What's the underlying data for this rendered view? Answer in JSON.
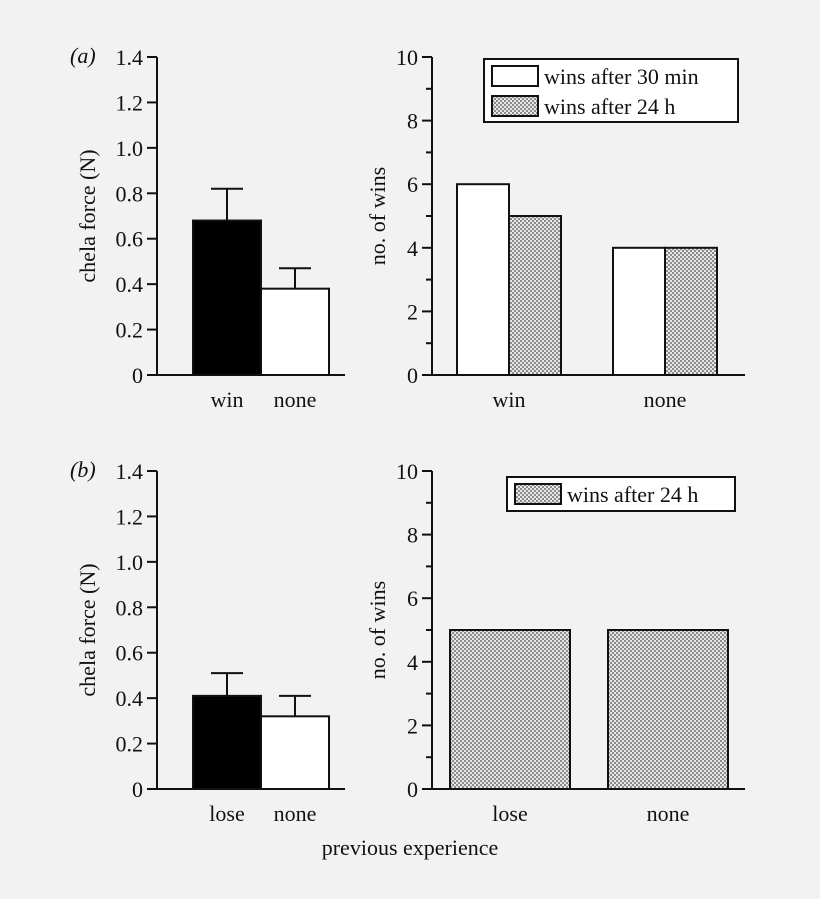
{
  "colors": {
    "background": "#f2f2f2",
    "black_bar": "#000000",
    "white_bar": "#ffffff",
    "checker_dark": "#8c8c8c",
    "checker_light": "#e6e6e6"
  },
  "x_label": "previous experience",
  "chart_data": [
    {
      "id": "a-force",
      "type": "bar",
      "panel_label": "(a)",
      "categories": [
        "win",
        "none"
      ],
      "values": [
        0.68,
        0.38
      ],
      "errors": [
        0.14,
        0.09
      ],
      "fills": [
        "black",
        "white"
      ],
      "ylabel": "chela force (N)",
      "ylim": [
        0,
        1.4
      ],
      "yticks": [
        "0",
        "0.2",
        "0.4",
        "0.6",
        "0.8",
        "1.0",
        "1.2",
        "1.4"
      ],
      "yminor": false
    },
    {
      "id": "a-wins",
      "type": "bar",
      "categories": [
        "win",
        "none"
      ],
      "series": [
        {
          "name": "wins after 30 min",
          "fill": "white",
          "values": [
            6,
            4
          ]
        },
        {
          "name": "wins after 24 h",
          "fill": "checker",
          "values": [
            5,
            4
          ]
        }
      ],
      "ylabel": "no. of wins",
      "ylim": [
        0,
        10
      ],
      "yticks": [
        "0",
        "2",
        "4",
        "6",
        "8",
        "10"
      ],
      "yminor": true,
      "legend": "top-right"
    },
    {
      "id": "b-force",
      "type": "bar",
      "panel_label": "(b)",
      "categories": [
        "lose",
        "none"
      ],
      "values": [
        0.41,
        0.32
      ],
      "errors": [
        0.1,
        0.09
      ],
      "fills": [
        "black",
        "white"
      ],
      "ylabel": "chela force (N)",
      "ylim": [
        0,
        1.4
      ],
      "yticks": [
        "0",
        "0.2",
        "0.4",
        "0.6",
        "0.8",
        "1.0",
        "1.2",
        "1.4"
      ],
      "yminor": false
    },
    {
      "id": "b-wins",
      "type": "bar",
      "categories": [
        "lose",
        "none"
      ],
      "series": [
        {
          "name": "wins after 24 h",
          "fill": "checker",
          "values": [
            5,
            5
          ]
        }
      ],
      "ylabel": "no. of wins",
      "ylim": [
        0,
        10
      ],
      "yticks": [
        "0",
        "2",
        "4",
        "6",
        "8",
        "10"
      ],
      "yminor": true,
      "legend": "top-right"
    }
  ]
}
